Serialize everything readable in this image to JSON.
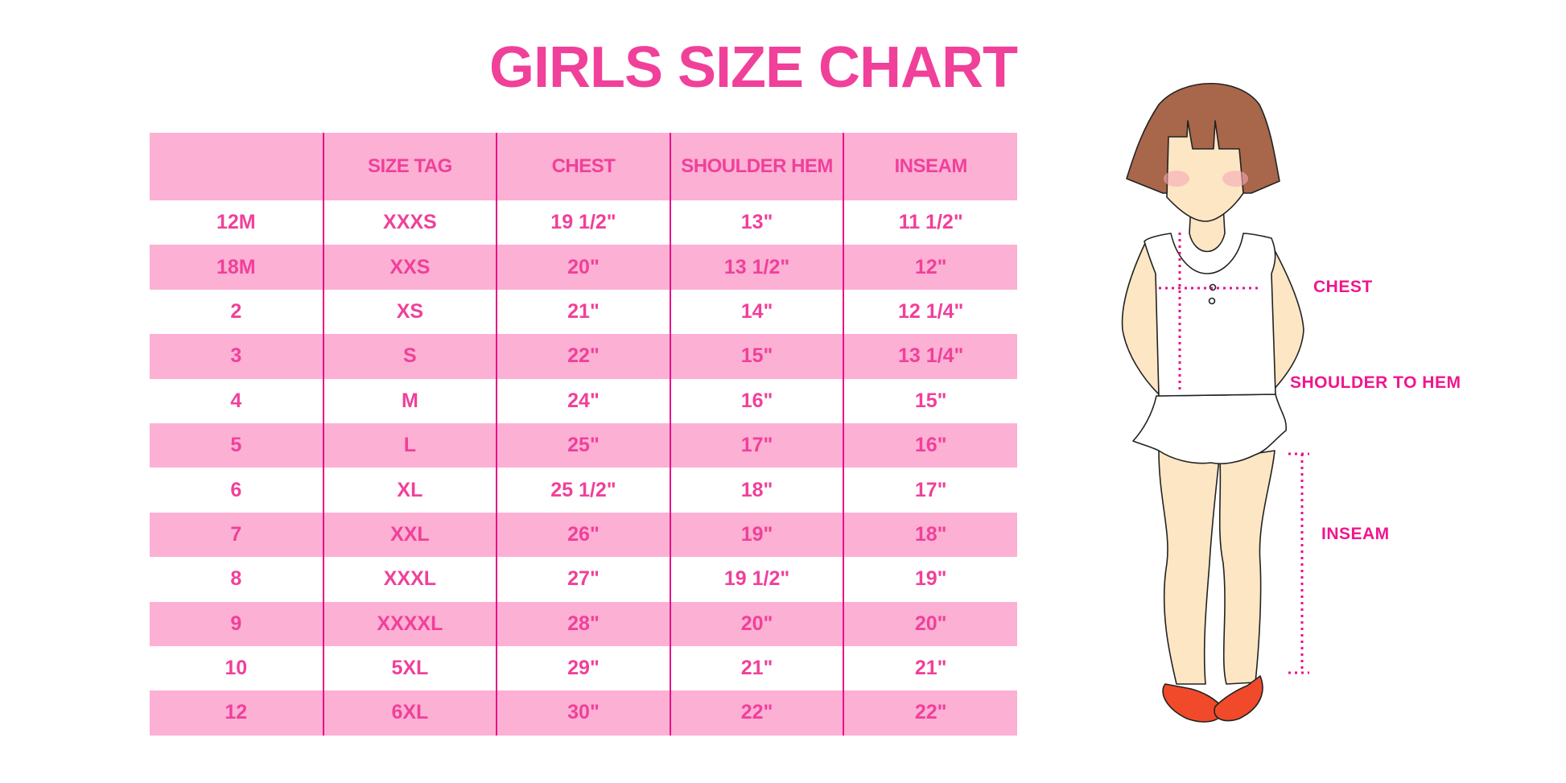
{
  "title": "GIRLS SIZE CHART",
  "colors": {
    "accent": "#f0409a",
    "row_band": "#fcb0d4",
    "divider": "#e8108a"
  },
  "table": {
    "headers": [
      "",
      "SIZE TAG",
      "CHEST",
      "SHOULDER HEM",
      "INSEAM"
    ],
    "rows": [
      [
        "12M",
        "XXXS",
        "19 1/2\"",
        "13\"",
        "11 1/2\""
      ],
      [
        "18M",
        "XXS",
        "20\"",
        "13 1/2\"",
        "12\""
      ],
      [
        "2",
        "XS",
        "21\"",
        "14\"",
        "12 1/4\""
      ],
      [
        "3",
        "S",
        "22\"",
        "15\"",
        "13 1/4\""
      ],
      [
        "4",
        "M",
        "24\"",
        "16\"",
        "15\""
      ],
      [
        "5",
        "L",
        "25\"",
        "17\"",
        "16\""
      ],
      [
        "6",
        "XL",
        "25 1/2\"",
        "18\"",
        "17\""
      ],
      [
        "7",
        "XXL",
        "26\"",
        "19\"",
        "18\""
      ],
      [
        "8",
        "XXXL",
        "27\"",
        "19 1/2\"",
        "19\""
      ],
      [
        "9",
        "XXXXL",
        "28\"",
        "20\"",
        "20\""
      ],
      [
        "10",
        "5XL",
        "29\"",
        "21\"",
        "21\""
      ],
      [
        "12",
        "6XL",
        "30\"",
        "22\"",
        "22\""
      ]
    ]
  },
  "figure": {
    "labels": {
      "chest": "CHEST",
      "shoulder_to_hem": "SHOULDER TO HEM",
      "inseam": "INSEAM"
    }
  }
}
